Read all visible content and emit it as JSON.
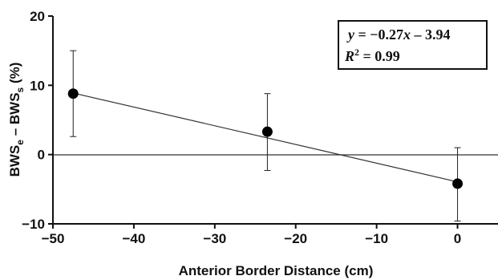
{
  "chart_data": {
    "type": "scatter",
    "x": [
      -47.5,
      -23.5,
      0
    ],
    "y": [
      8.8,
      3.3,
      -4.2
    ],
    "error_low": [
      2.6,
      -2.3,
      -9.6
    ],
    "error_high": [
      15.0,
      8.8,
      1.0
    ],
    "fit": {
      "slope": -0.27,
      "intercept": -3.94,
      "x_start": -47.5,
      "x_end": 0
    },
    "xlim": [
      -50,
      5
    ],
    "ylim": [
      -10,
      20
    ],
    "xticks": [
      -50,
      -40,
      -30,
      -20,
      -10,
      0
    ],
    "yticks": [
      -10,
      0,
      10,
      20
    ],
    "x_tick_labels": [
      "−50",
      "−40",
      "−30",
      "−20",
      "−10",
      "0"
    ],
    "y_tick_labels": [
      "−10",
      "0",
      "10",
      "20"
    ],
    "xlabel": "Anterior Border Distance (cm)",
    "ylabel": {
      "base1": "BWS",
      "sub1": "e",
      "mid": " – BWS",
      "sub2": "s",
      "tail": " (%)"
    },
    "annotation": {
      "eq_y": "y",
      "eq_mid": " = −0.27",
      "eq_x": "x",
      "eq_tail": " – 3.94",
      "r2_r": "R",
      "r2_sup": "2",
      "r2_tail": " = 0.99"
    },
    "zero_line": true,
    "grid": false,
    "legend": "none"
  }
}
